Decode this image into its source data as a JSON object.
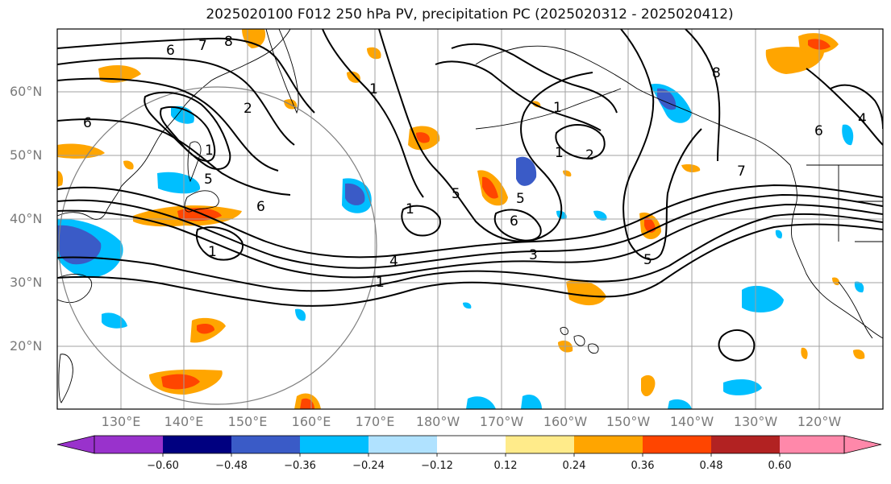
{
  "title": "2025020100 F012 250 hPa PV, precipitation PC (2025020312 - 2025020412)",
  "lat_labels": [
    "20°N",
    "30°N",
    "40°N",
    "50°N",
    "60°N"
  ],
  "lon_labels": [
    "130°E",
    "140°E",
    "150°E",
    "160°E",
    "170°E",
    "180°W",
    "170°W",
    "160°W",
    "150°W",
    "140°W",
    "130°W",
    "120°W"
  ],
  "contour_labels": [
    "6",
    "7",
    "8",
    "6",
    "1",
    "2",
    "5",
    "6",
    "1",
    "1",
    "5",
    "5",
    "6",
    "1",
    "1",
    "1",
    "2",
    "3",
    "4",
    "7",
    "5",
    "8",
    "6",
    "4",
    "1"
  ],
  "colorbar": {
    "ticks": [
      "−0.60",
      "−0.48",
      "−0.36",
      "−0.24",
      "−0.12",
      "0.12",
      "0.24",
      "0.36",
      "0.48",
      "0.60"
    ],
    "colors": [
      "#9932cc",
      "#000080",
      "#3a5bc7",
      "#00bfff",
      "#b0e2ff",
      "#ffffff",
      "#ffeb8a",
      "#ffa500",
      "#ff4500",
      "#b22222",
      "#ff88aa"
    ]
  },
  "colors": {
    "contour": "#000000",
    "grid": "#a0a0a0",
    "circle": "#808080",
    "coast": "#000000"
  }
}
